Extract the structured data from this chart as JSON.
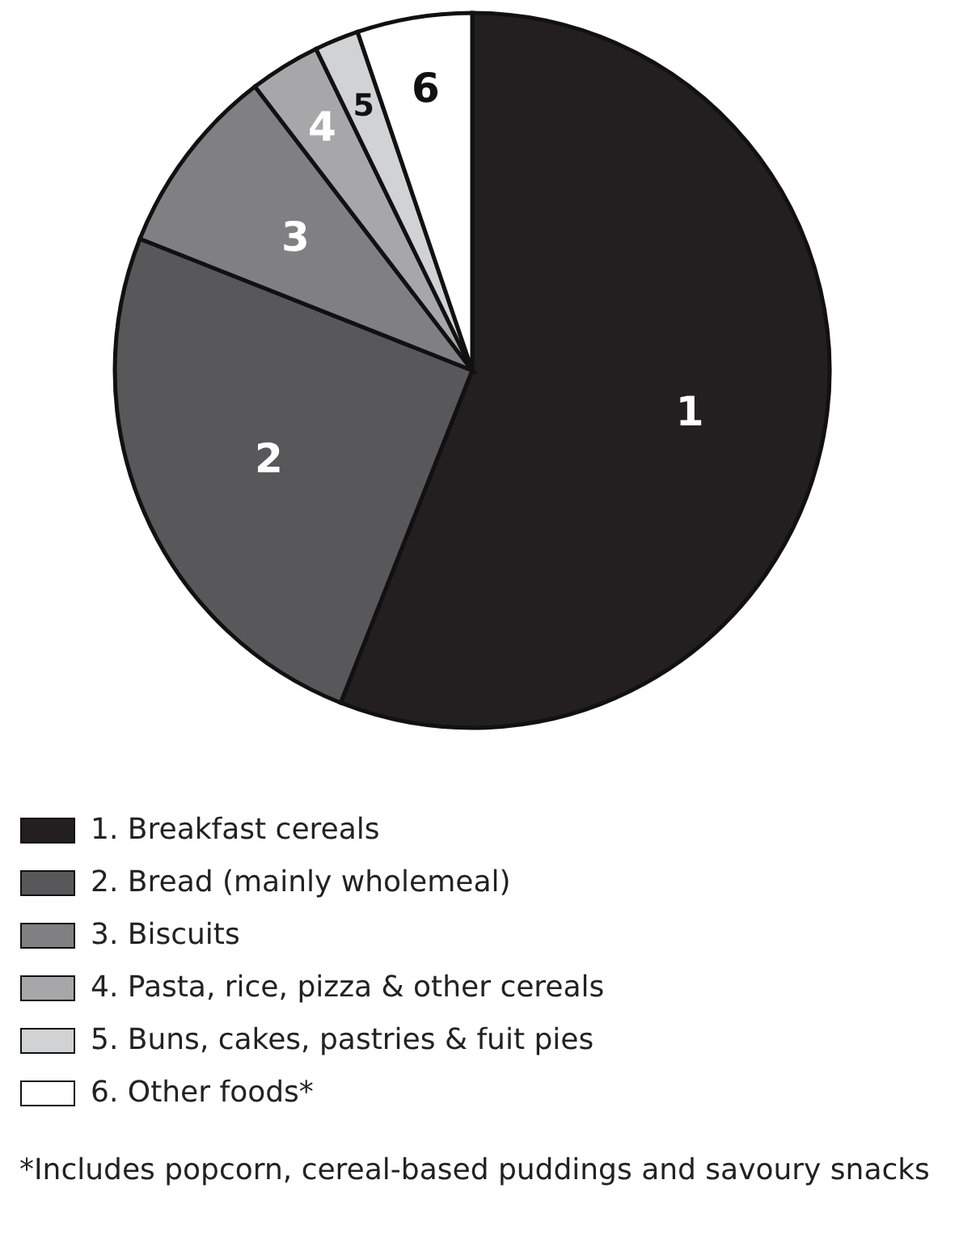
{
  "chart_data": {
    "type": "pie",
    "categories": [
      "1. Breakfast cereals",
      "2. Bread (mainly wholemeal)",
      "3. Biscuits",
      "4. Pasta, rice, pizza & other cereals",
      "5. Buns, cakes, pastries & fuit pies",
      "6. Other foods*"
    ],
    "values": [
      56,
      25,
      8.6,
      3.2,
      2,
      5.2
    ],
    "colors": [
      "#231f20",
      "#58585a",
      "#808083",
      "#a7a7aa",
      "#d1d2d4",
      "#ffffff"
    ],
    "legend": "bottom",
    "annotations": [
      {
        "text": "1",
        "x": "1. Breakfast cereals"
      },
      {
        "text": "2",
        "x": "2. Bread (mainly wholemeal)"
      },
      {
        "text": "3",
        "x": "3. Biscuits"
      },
      {
        "text": "4",
        "x": "4. Pasta, rice, pizza & other cereals"
      },
      {
        "text": "5",
        "x": "5. Buns, cakes, pastries & fuit pies"
      },
      {
        "text": "6",
        "x": "6. Other foods*"
      },
      "*Includes popcorn, cereal-based puddings and savoury snacks"
    ]
  }
}
